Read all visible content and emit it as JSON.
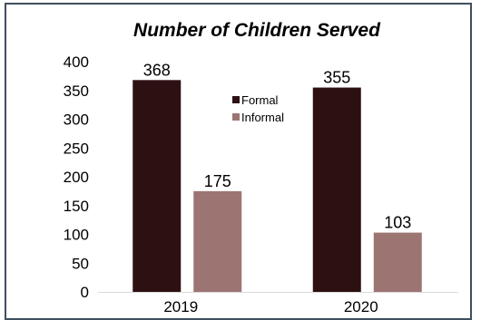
{
  "chart_data": {
    "type": "bar",
    "title": "Number of Children Served",
    "categories": [
      "2019",
      "2020"
    ],
    "series": [
      {
        "name": "Formal",
        "values": [
          368,
          355
        ],
        "color": "#2d1012"
      },
      {
        "name": "Informal",
        "values": [
          175,
          103
        ],
        "color": "#9c7573"
      }
    ],
    "xlabel": "",
    "ylabel": "",
    "ylim": [
      0,
      400
    ],
    "yticks": [
      0,
      50,
      100,
      150,
      200,
      250,
      300,
      350,
      400
    ],
    "grid": false,
    "legend_position": "center-top",
    "data_labels": true
  }
}
